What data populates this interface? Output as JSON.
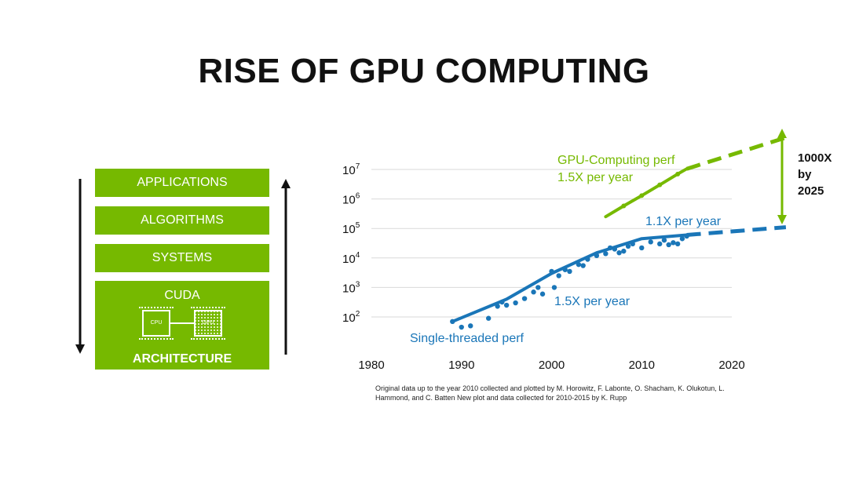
{
  "slide": {
    "title": "RISE OF GPU COMPUTING",
    "citation": "Original data up to the year 2010 collected and plotted by M. Horowitz, F. Labonte, O. Shacham, K. Olukotun, L. Hammond, and C. Batten New plot and data collected for 2010-2015 by K. Rupp"
  },
  "stack": {
    "boxes": [
      "APPLICATIONS",
      "ALGORITHMS",
      "SYSTEMS",
      "CUDA"
    ],
    "architecture_label": "ARCHITECTURE",
    "cpu_label": "CPU",
    "gpu_label": "GPU"
  },
  "colors": {
    "green": "#76b900",
    "blue": "#1a76b8",
    "grid": "#d9d9d9",
    "text": "#111111"
  },
  "chart_data": {
    "type": "scatter",
    "x_ticks": [
      1980,
      1990,
      2000,
      2010,
      2020
    ],
    "y_ticks": [
      {
        "value": 100,
        "base": "10",
        "exp": "2"
      },
      {
        "value": 1000,
        "base": "10",
        "exp": "3"
      },
      {
        "value": 10000,
        "base": "10",
        "exp": "4"
      },
      {
        "value": 100000,
        "base": "10",
        "exp": "5"
      },
      {
        "value": 1000000,
        "base": "10",
        "exp": "6"
      },
      {
        "value": 10000000,
        "base": "10",
        "exp": "7"
      }
    ],
    "xlim": [
      1980,
      2020
    ],
    "y_scale": "log",
    "grid": true,
    "series": [
      {
        "name": "Single-threaded perf",
        "color": "#1a76b8",
        "points": [
          [
            1989,
            70
          ],
          [
            1990,
            45
          ],
          [
            1991,
            50
          ],
          [
            1993,
            90
          ],
          [
            1994,
            230
          ],
          [
            1994.5,
            320
          ],
          [
            1995,
            250
          ],
          [
            1996,
            300
          ],
          [
            1997,
            420
          ],
          [
            1998,
            700
          ],
          [
            1998.5,
            1000
          ],
          [
            1999,
            600
          ],
          [
            2000,
            3500
          ],
          [
            2000.3,
            1000
          ],
          [
            2000.8,
            2500
          ],
          [
            2001.5,
            4000
          ],
          [
            2002,
            3500
          ],
          [
            2003,
            6000
          ],
          [
            2003.5,
            5500
          ],
          [
            2004,
            9000
          ],
          [
            2005,
            12000
          ],
          [
            2006,
            14000
          ],
          [
            2006.5,
            22000
          ],
          [
            2007,
            20000
          ],
          [
            2007.5,
            15000
          ],
          [
            2008,
            17000
          ],
          [
            2008.5,
            25000
          ],
          [
            2009,
            30000
          ],
          [
            2010,
            22000
          ],
          [
            2011,
            35000
          ],
          [
            2012,
            30000
          ],
          [
            2012.5,
            40000
          ],
          [
            2013,
            28000
          ],
          [
            2013.5,
            33000
          ],
          [
            2014,
            30000
          ],
          [
            2014.5,
            45000
          ],
          [
            2015,
            55000
          ]
        ],
        "trend": [
          [
            1989,
            70
          ],
          [
            1995,
            400
          ],
          [
            2000,
            3000
          ],
          [
            2005,
            15000
          ],
          [
            2010,
            45000
          ],
          [
            2015,
            60000
          ]
        ]
      },
      {
        "name": "GPU-Computing perf",
        "color": "#76b900",
        "trend": [
          [
            2006,
            250000
          ],
          [
            2008,
            580000
          ],
          [
            2010,
            1300000
          ],
          [
            2012,
            3000000
          ],
          [
            2014,
            7000000
          ],
          [
            2015,
            10500000
          ]
        ]
      }
    ],
    "projections": [
      {
        "series": "GPU-Computing perf",
        "points": [
          [
            2015,
            10500000
          ],
          [
            2026,
            120000000
          ]
        ]
      },
      {
        "series": "Single-threaded perf",
        "points": [
          [
            2015,
            60000
          ],
          [
            2026,
            110000
          ]
        ]
      }
    ],
    "annotations": {
      "gpu_line1": "GPU-Computing perf",
      "gpu_line2": "1.5X per year",
      "blue_upper": "1.1X per year",
      "blue_lower": "1.5X per year",
      "blue_name": "Single-threaded perf",
      "gap_line1": "1000X",
      "gap_line2": "by",
      "gap_line3": "2025"
    }
  }
}
